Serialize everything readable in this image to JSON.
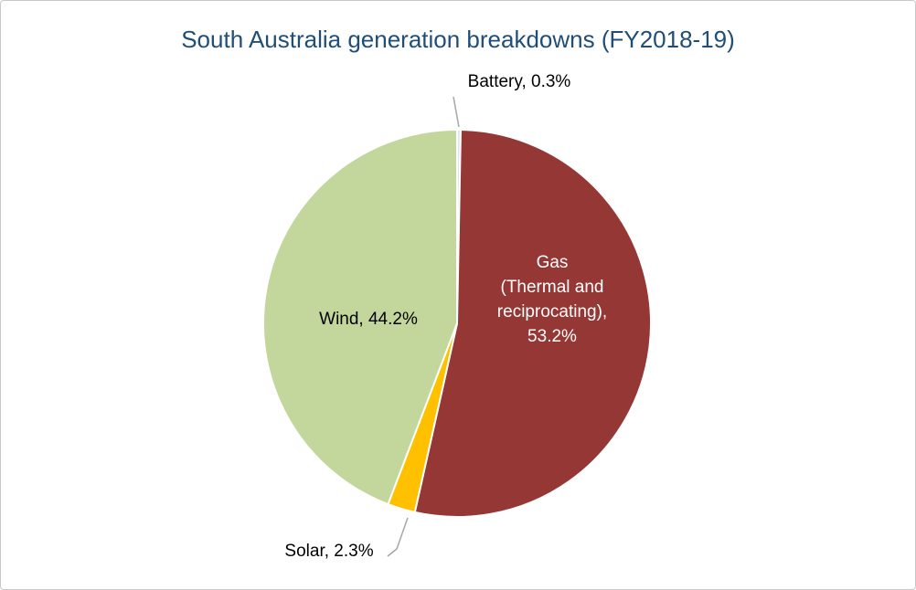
{
  "chart_data": {
    "type": "pie",
    "title": "South Australia generation breakdowns (FY2018-19)",
    "title_color": "#1F4E79",
    "legend": "none",
    "start_angle_deg": -90,
    "direction": "clockwise",
    "data_label_format": "category, percentage",
    "slices": [
      {
        "label": "Battery",
        "value": 0.3,
        "color": "#DCE6F1",
        "display": "Battery, 0.3%",
        "label_placement": "outside-top"
      },
      {
        "label": "Gas",
        "value": 53.2,
        "color": "#953735",
        "display": "Gas (Thermal and reciprocating), 53.2%",
        "label_lines": [
          "Gas",
          "(Thermal and",
          "reciprocating),",
          "53.2%"
        ],
        "label_color": "#FFFFFF",
        "label_placement": "inside-right"
      },
      {
        "label": "Solar",
        "value": 2.3,
        "color": "#FFC000",
        "display": "Solar, 2.3%",
        "label_placement": "outside-bottom"
      },
      {
        "label": "Wind",
        "value": 44.2,
        "color": "#C3D69B",
        "display": "Wind, 44.2%",
        "label_placement": "inside-left"
      }
    ]
  }
}
